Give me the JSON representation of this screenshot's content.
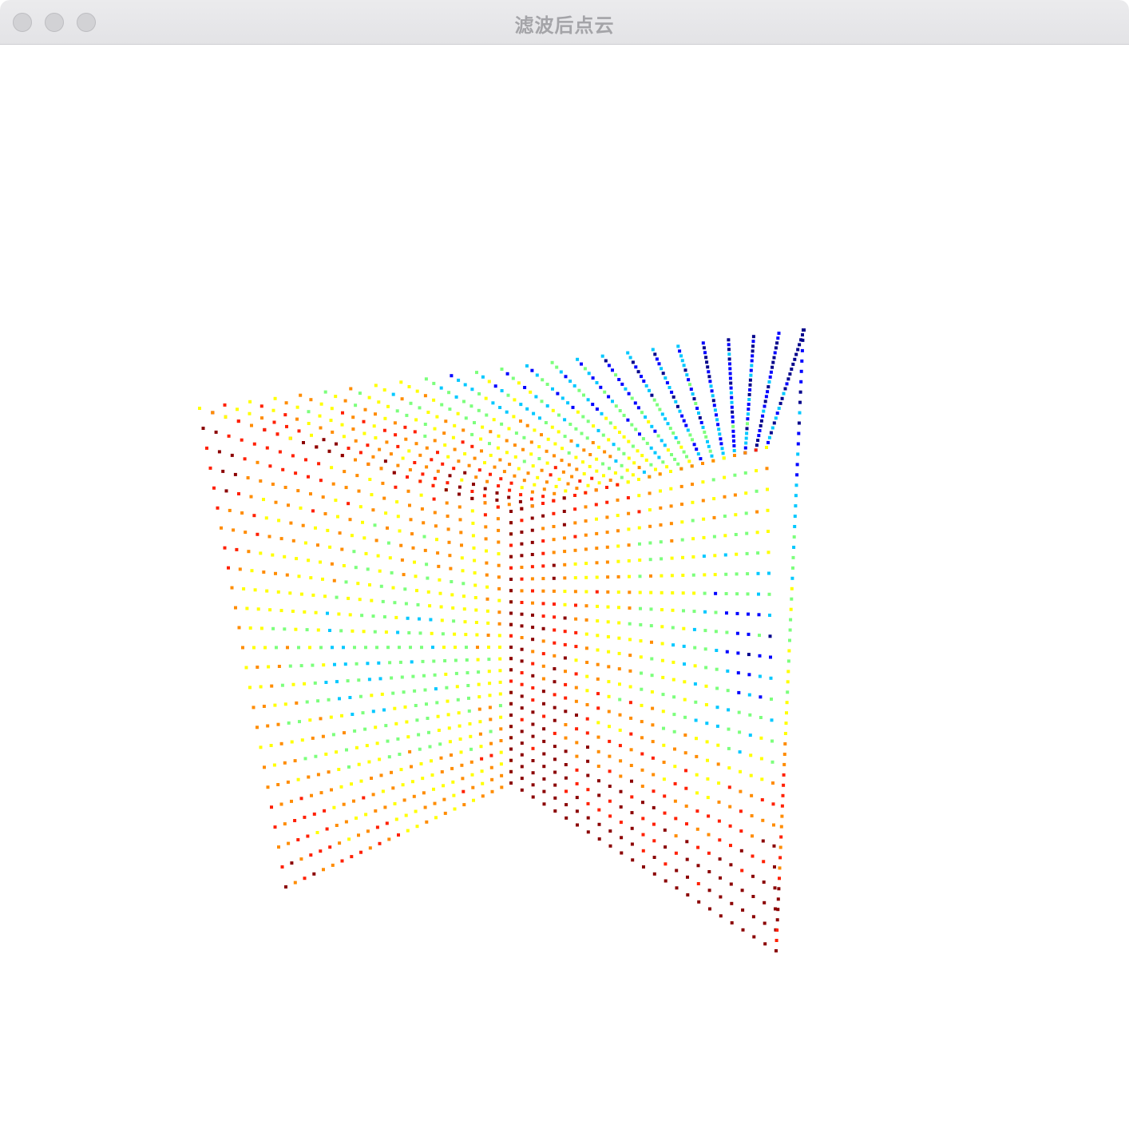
{
  "window": {
    "title": "滤波后点云",
    "controls": {
      "close": "close-button",
      "minimize": "minimize-button",
      "zoom": "zoom-button"
    }
  },
  "viewer": {
    "background": "#ffffff",
    "colormap": [
      "#00008b",
      "#0000ff",
      "#00c8ff",
      "#7cff7c",
      "#ffff00",
      "#ff8c00",
      "#ff2000",
      "#8b0000"
    ]
  }
}
